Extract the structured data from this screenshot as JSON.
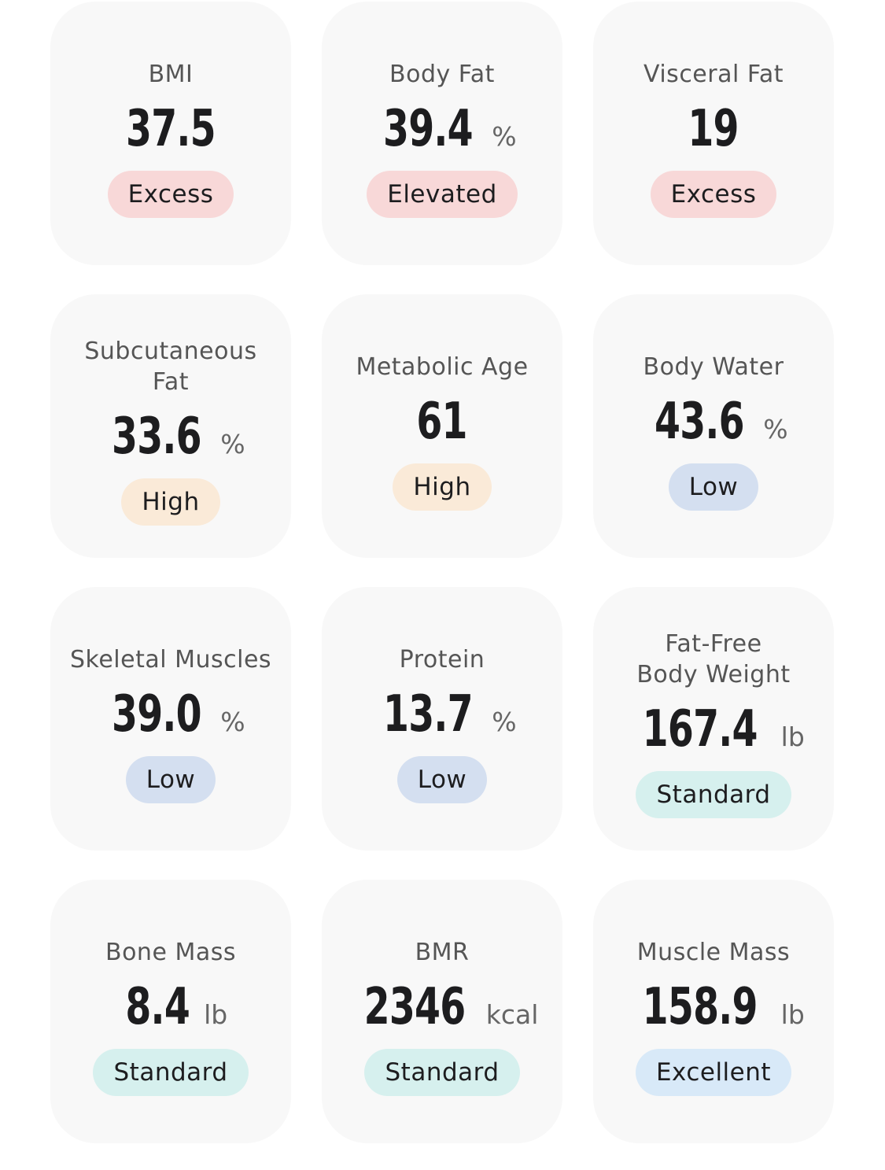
{
  "status_colors": {
    "excess": "#f8d8d8",
    "high": "#faead8",
    "low": "#d4dff0",
    "standard": "#d6f0ee",
    "excellent": "#d8e9f8"
  },
  "metrics": [
    {
      "label": "BMI",
      "value": "37.5",
      "unit": "",
      "status": "Excess"
    },
    {
      "label": "Body Fat",
      "value": "39.4",
      "unit": "%",
      "status": "Elevated"
    },
    {
      "label": "Visceral Fat",
      "value": "19",
      "unit": "",
      "status": "Excess"
    },
    {
      "label": "Subcutaneous\nFat",
      "value": "33.6",
      "unit": "%",
      "status": "High"
    },
    {
      "label": "Metabolic Age",
      "value": "61",
      "unit": "",
      "status": "High"
    },
    {
      "label": "Body Water",
      "value": "43.6",
      "unit": "%",
      "status": "Low"
    },
    {
      "label": "Skeletal Muscles",
      "value": "39.0",
      "unit": "%",
      "status": "Low"
    },
    {
      "label": "Protein",
      "value": "13.7",
      "unit": "%",
      "status": "Low"
    },
    {
      "label": "Fat-Free\nBody Weight",
      "value": "167.4",
      "unit": "lb",
      "status": "Standard"
    },
    {
      "label": "Bone Mass",
      "value": "8.4",
      "unit": "lb",
      "status": "Standard"
    },
    {
      "label": "BMR",
      "value": "2346",
      "unit": "kcal",
      "status": "Standard"
    },
    {
      "label": "Muscle Mass",
      "value": "158.9",
      "unit": "lb",
      "status": "Excellent"
    }
  ]
}
